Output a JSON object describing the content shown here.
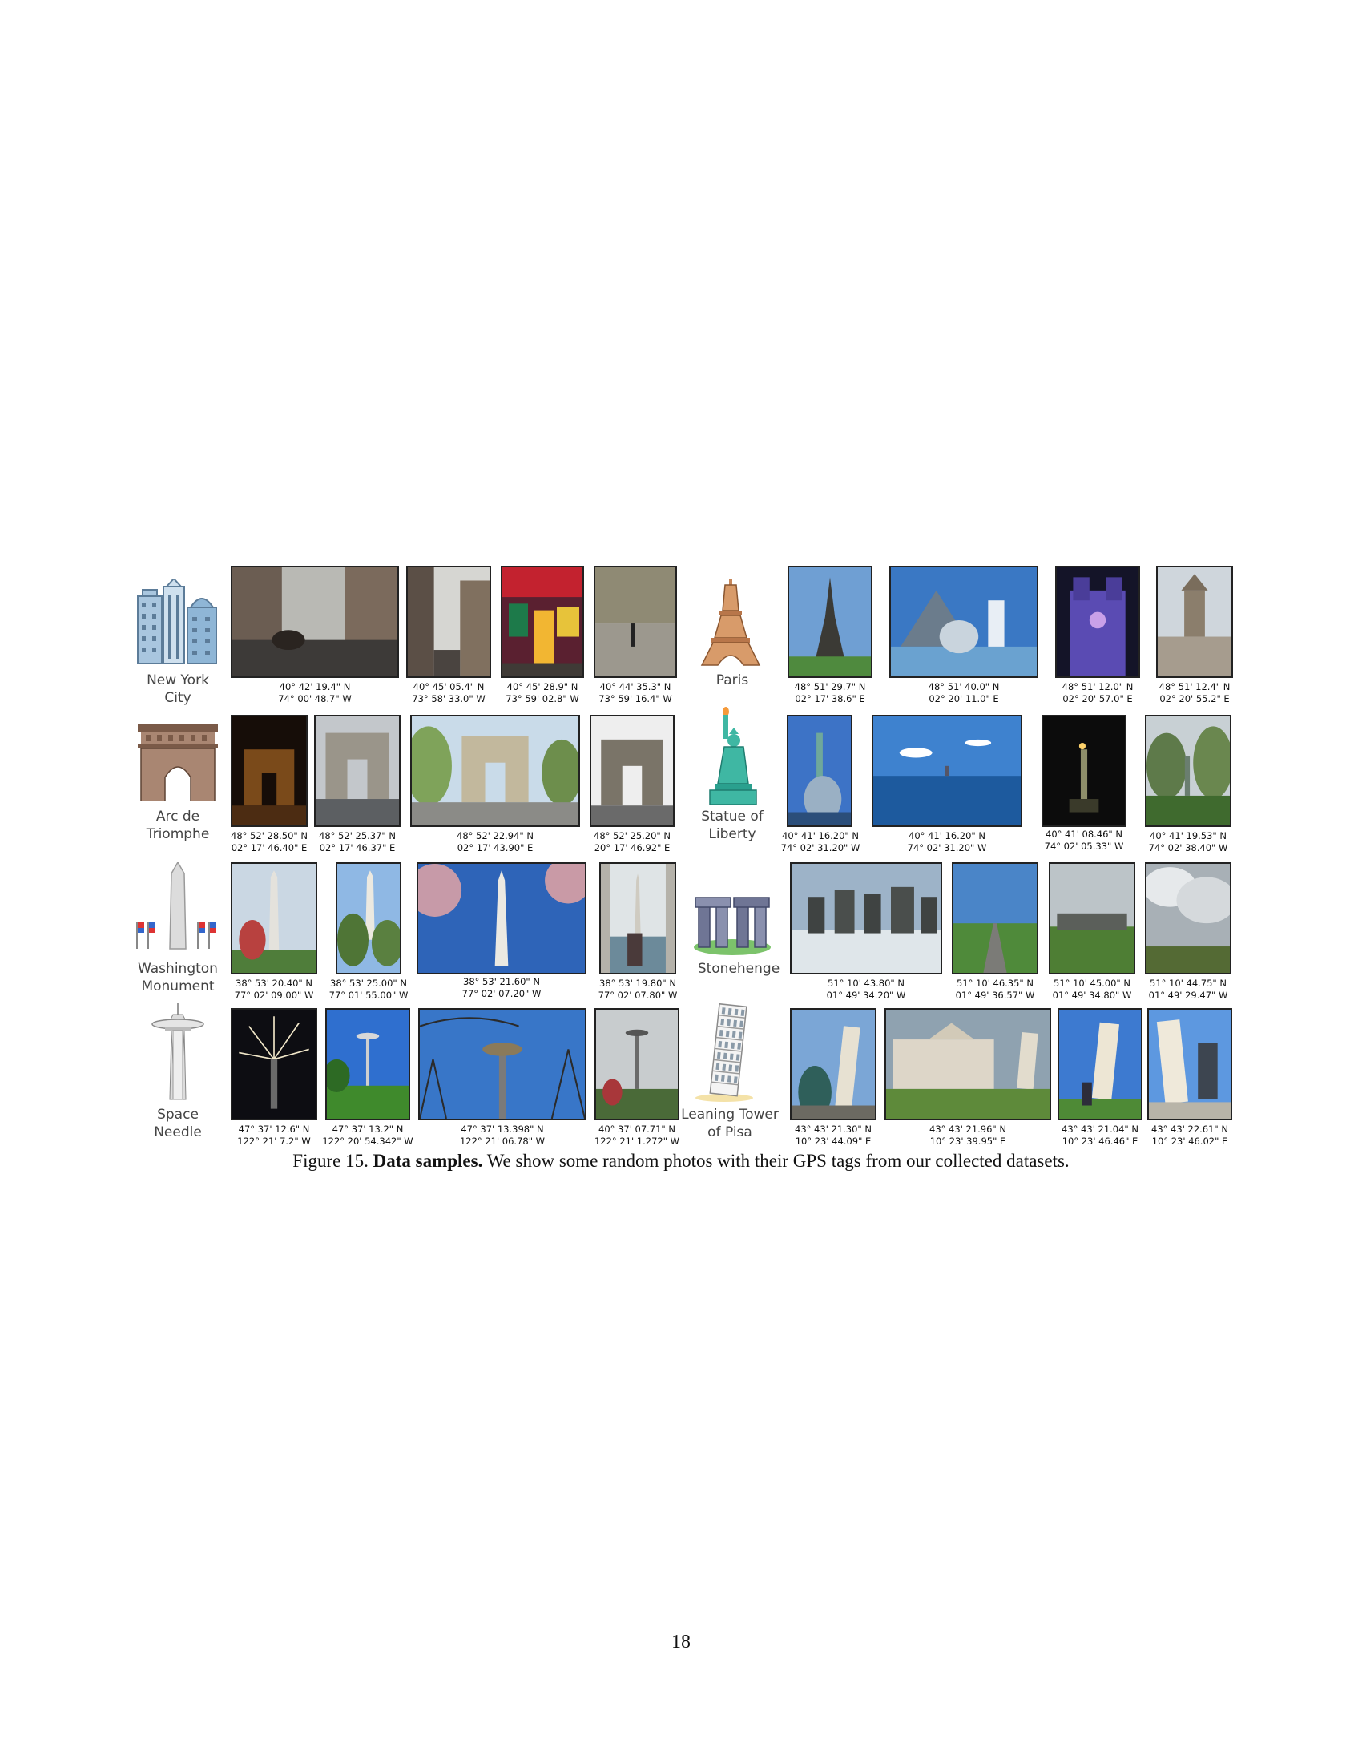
{
  "figure": {
    "caption_label": "Figure 15.",
    "caption_bold": "Data samples.",
    "caption_text": "We show some random photos with their GPS tags from our collected datasets."
  },
  "page_number": "18",
  "landmarks": [
    {
      "name": "New York\nCity",
      "icon": "new-york-city-icon",
      "photos": [
        {
          "lat": "40° 42' 19.4\" N",
          "lon": "74° 00' 48.7\" W"
        },
        {
          "lat": "40° 45' 05.4\" N",
          "lon": "73° 58' 33.0\" W"
        },
        {
          "lat": "40° 45' 28.9\" N",
          "lon": "73° 59' 02.8\" W"
        },
        {
          "lat": "40° 44' 35.3\" N",
          "lon": "73° 59' 16.4\" W"
        }
      ]
    },
    {
      "name": "Paris",
      "icon": "eiffel-tower-icon",
      "photos": [
        {
          "lat": "48° 51' 29.7\" N",
          "lon": "02° 17' 38.6\" E"
        },
        {
          "lat": "48° 51' 40.0\" N",
          "lon": "02° 20' 11.0\" E"
        },
        {
          "lat": "48° 51' 12.0\" N",
          "lon": "02° 20' 57.0\" E"
        },
        {
          "lat": "48° 51' 12.4\" N",
          "lon": "02° 20' 55.2\" E"
        }
      ]
    },
    {
      "name": "Arc de\nTriomphe",
      "icon": "arc-de-triomphe-icon",
      "photos": [
        {
          "lat": "48° 52' 28.50\" N",
          "lon": "02° 17' 46.40\" E"
        },
        {
          "lat": "48° 52' 25.37\" N",
          "lon": "02° 17' 46.37\" E"
        },
        {
          "lat": "48° 52' 22.94\" N",
          "lon": "02° 17' 43.90\" E"
        },
        {
          "lat": "48° 52' 25.20\" N",
          "lon": "20° 17' 46.92\" E"
        }
      ]
    },
    {
      "name": "Statue of\nLiberty",
      "icon": "statue-of-liberty-icon",
      "photos": [
        {
          "lat": "40° 41' 16.20\" N",
          "lon": "74° 02' 31.20\" W"
        },
        {
          "lat": "40° 41' 16.20\" N",
          "lon": "74° 02' 31.20\" W"
        },
        {
          "lat": "40° 41' 08.46\" N",
          "lon": "74° 02' 05.33\" W"
        },
        {
          "lat": "40° 41' 19.53\" N",
          "lon": "74° 02' 38.40\" W"
        }
      ]
    },
    {
      "name": "Washington\nMonument",
      "icon": "washington-monument-icon",
      "photos": [
        {
          "lat": "38° 53' 20.40\" N",
          "lon": "77° 02' 09.00\" W"
        },
        {
          "lat": "38° 53' 25.00\" N",
          "lon": "77° 01' 55.00\" W"
        },
        {
          "lat": "38° 53' 21.60\" N",
          "lon": "77° 02' 07.20\" W"
        },
        {
          "lat": "38° 53' 19.80\" N",
          "lon": "77° 02' 07.80\" W"
        }
      ]
    },
    {
      "name": "Stonehenge",
      "icon": "stonehenge-icon",
      "photos": [
        {
          "lat": "51° 10' 43.80\" N",
          "lon": "01° 49' 34.20\" W"
        },
        {
          "lat": "51° 10' 46.35\" N",
          "lon": "01° 49' 36.57\" W"
        },
        {
          "lat": "51° 10' 45.00\" N",
          "lon": "01° 49' 34.80\" W"
        },
        {
          "lat": "51° 10' 44.75\" N",
          "lon": "01° 49' 29.47\" W"
        }
      ]
    },
    {
      "name": "Space\nNeedle",
      "icon": "space-needle-icon",
      "photos": [
        {
          "lat": "47° 37' 12.6\" N",
          "lon": "122° 21' 7.2\" W"
        },
        {
          "lat": "47° 37' 13.2\" N",
          "lon": "122° 20' 54.342\" W"
        },
        {
          "lat": "47° 37' 13.398\" N",
          "lon": "122° 21' 06.78\" W"
        },
        {
          "lat": "40° 37' 07.71\" N",
          "lon": "122° 21' 1.272\" W"
        }
      ]
    },
    {
      "name": "Leaning Tower\nof Pisa",
      "icon": "leaning-tower-of-pisa-icon",
      "photos": [
        {
          "lat": "43° 43' 21.30\" N",
          "lon": "10° 23' 44.09\" E"
        },
        {
          "lat": "43° 43' 21.96\" N",
          "lon": "10° 23' 39.95\" E"
        },
        {
          "lat": "43° 43' 21.04\" N",
          "lon": "10° 23' 46.46\" E"
        },
        {
          "lat": "43° 43' 22.61\" N",
          "lon": "10° 23' 46.02\" E"
        }
      ]
    }
  ],
  "colors": {
    "nyc_building": "#8fb6d6",
    "eiffel": "#c7875a",
    "arc": "#8c6a55",
    "liberty": "#3fb7a3",
    "monument": "#d9d9d9",
    "stonehenge": "#6f7595",
    "grass": "#7cc36b",
    "needle": "#e5e5e5",
    "pisa": "#f0f0f0"
  }
}
